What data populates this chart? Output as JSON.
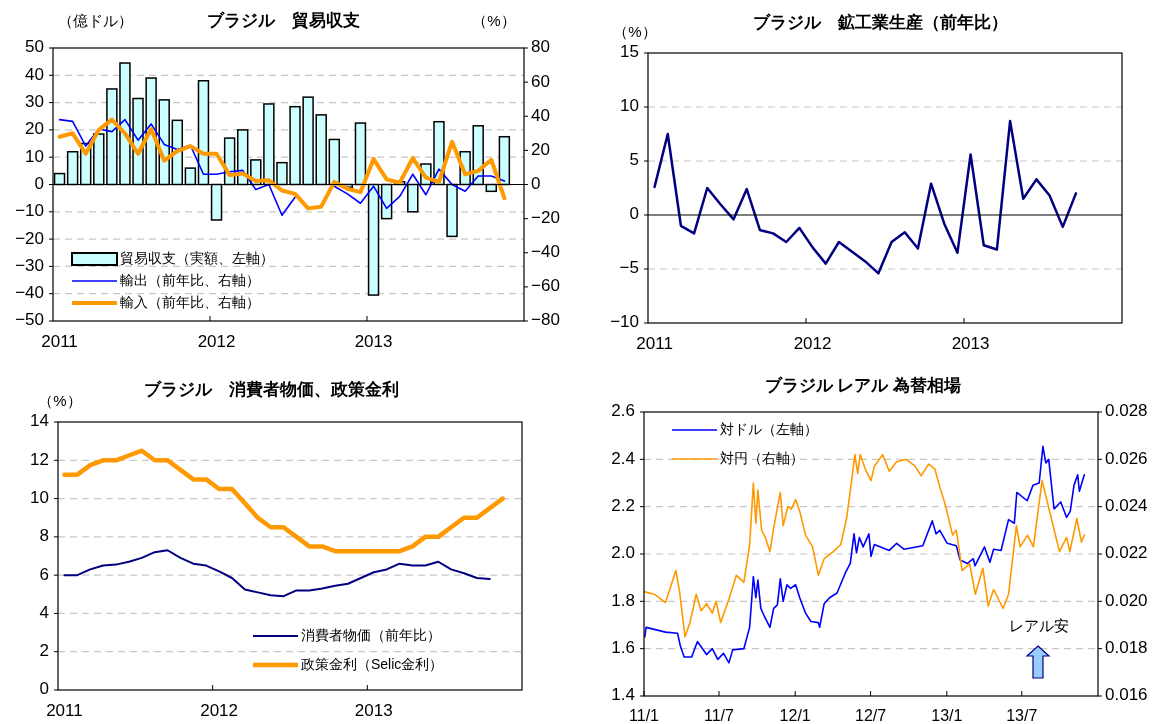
{
  "chart_data": [
    {
      "type": "bar",
      "title": "ブラジル　貿易収支",
      "ylabel": "（億ドル）",
      "y2label": "（%）",
      "categories": [
        "2011",
        null,
        null,
        null,
        null,
        null,
        null,
        null,
        null,
        null,
        null,
        null,
        "2012",
        null,
        null,
        null,
        null,
        null,
        null,
        null,
        null,
        null,
        null,
        null,
        "2013",
        null,
        null,
        null,
        null,
        null,
        null,
        null,
        null,
        null,
        null,
        null
      ],
      "series": [
        {
          "name": "貿易収支（実額、左軸）",
          "color": "#ccffff",
          "values": [
            4,
            12,
            15,
            18.5,
            35,
            44.5,
            31.5,
            39,
            31,
            23.5,
            6,
            38,
            -13,
            17,
            20,
            9,
            29.5,
            8,
            28.5,
            32,
            25.5,
            16.5,
            -1,
            22.5,
            -40.5,
            -12.5,
            1,
            -10,
            7.5,
            23,
            -19,
            12,
            21.5,
            -2.5,
            17.5,
            null
          ]
        },
        {
          "name": "輸出（前年比、右軸）",
          "type": "line",
          "axis": "y2",
          "color": "#0000ff",
          "values": [
            38,
            37,
            22.5,
            32.5,
            31,
            38,
            26,
            35.5,
            23.5,
            20.5,
            23,
            6,
            6,
            7.5,
            8.3,
            -3,
            0,
            -18,
            -7.5,
            null,
            null,
            -1,
            -5.5,
            -11,
            -1,
            -14,
            -7,
            6,
            -6,
            9,
            0,
            -4,
            5,
            5,
            2,
            null
          ]
        },
        {
          "name": "輸入（前年比、右軸）",
          "type": "line",
          "axis": "y2",
          "color": "#ff9900",
          "values": [
            28,
            30,
            18,
            32,
            38,
            30,
            18,
            32.5,
            14,
            19.5,
            22.5,
            18,
            18,
            5.5,
            6.5,
            2,
            2.5,
            -3.5,
            -5.5,
            -14,
            -13,
            1.5,
            -2.5,
            -4.5,
            15,
            3,
            1,
            15.5,
            4,
            1.5,
            25,
            6,
            8,
            14.5,
            -8,
            null
          ]
        }
      ],
      "ylim": [
        -50,
        50
      ],
      "yticks": [
        -50,
        -40,
        -30,
        -20,
        -10,
        0,
        10,
        20,
        30,
        40,
        50
      ],
      "y2lim": [
        -80,
        80
      ],
      "y2ticks": [
        -80,
        -60,
        -40,
        -20,
        0,
        20,
        40,
        60,
        80
      ],
      "grid": "y",
      "legend": "bottom left"
    },
    {
      "type": "line",
      "title": "ブラジル　鉱工業生産（前年比）",
      "ylabel": "（%）",
      "categories": [
        "2011",
        null,
        null,
        null,
        null,
        null,
        null,
        null,
        null,
        null,
        null,
        null,
        "2012",
        null,
        null,
        null,
        null,
        null,
        null,
        null,
        null,
        null,
        null,
        null,
        "2013",
        null,
        null,
        null,
        null,
        null,
        null,
        null,
        null,
        null,
        null,
        null
      ],
      "series": [
        {
          "color": "#000080",
          "values": [
            2.6,
            7.5,
            -1,
            -1.7,
            2.5,
            1,
            -0.4,
            2.4,
            -1.4,
            -1.7,
            -2.5,
            -1.2,
            -3,
            -4.5,
            -2.5,
            -3.4,
            -4.3,
            -5.4,
            -2.5,
            -1.6,
            -3.1,
            2.9,
            -0.8,
            -3.5,
            5.6,
            -2.8,
            -3.2,
            8.7,
            1.5,
            3.3,
            1.8,
            -1.1,
            2,
            null,
            null,
            null
          ]
        }
      ],
      "ylim": [
        -10,
        15
      ],
      "yticks": [
        -10,
        -5,
        0,
        5,
        10,
        15
      ],
      "grid": "y"
    },
    {
      "type": "line",
      "title": "ブラジル　消費者物価、政策金利",
      "ylabel": "（%）",
      "categories": [
        "2011",
        null,
        null,
        null,
        null,
        null,
        null,
        null,
        null,
        null,
        null,
        null,
        "2012",
        null,
        null,
        null,
        null,
        null,
        null,
        null,
        null,
        null,
        null,
        null,
        "2013",
        null,
        null,
        null,
        null,
        null,
        null,
        null,
        null,
        null,
        null,
        null
      ],
      "series": [
        {
          "name": "消費者物価（前年比）",
          "color": "#000080",
          "values": [
            6.0,
            6.0,
            6.3,
            6.5,
            6.55,
            6.7,
            6.9,
            7.2,
            7.3,
            6.9,
            6.6,
            6.5,
            6.2,
            5.85,
            5.25,
            5.1,
            4.95,
            4.9,
            5.2,
            5.2,
            5.3,
            5.45,
            5.55,
            5.85,
            6.15,
            6.3,
            6.6,
            6.5,
            6.5,
            6.7,
            6.3,
            6.1,
            5.85,
            5.8,
            null,
            null
          ]
        },
        {
          "name": "政策金利（Selic金利）",
          "color": "#ff9900",
          "values": [
            11.25,
            11.25,
            11.75,
            12,
            12,
            12.25,
            12.5,
            12,
            12,
            11.5,
            11,
            11,
            10.5,
            10.5,
            9.75,
            9,
            8.5,
            8.5,
            8,
            7.5,
            7.5,
            7.25,
            7.25,
            7.25,
            7.25,
            7.25,
            7.25,
            7.5,
            8,
            8,
            8.5,
            9,
            9,
            9.5,
            10,
            null
          ]
        }
      ],
      "ylim": [
        0,
        14
      ],
      "yticks": [
        0,
        2,
        4,
        6,
        8,
        10,
        12,
        14
      ],
      "grid": "y",
      "legend": "bottom right"
    },
    {
      "type": "line",
      "title": "ブラジル レアル 為替相場",
      "xlim": [
        "2011-01-01",
        "2014-01-01"
      ],
      "xticks": [
        {
          "value": "2011-01-01",
          "label": "11/1"
        },
        {
          "value": "2011-07-01",
          "label": "11/7"
        },
        {
          "value": "2012-01-01",
          "label": "12/1"
        },
        {
          "value": "2012-07-01",
          "label": "12/7"
        },
        {
          "value": "2013-01-01",
          "label": "13/1"
        },
        {
          "value": "2013-07-01",
          "label": "13/7"
        }
      ],
      "series": [
        {
          "name": "対ドル（左軸）",
          "color": "#0000ff",
          "x": [
            "2011-01-03",
            "2011-01-06",
            "2011-02-22",
            "2011-03-23",
            "2011-03-30",
            "2011-04-08",
            "2011-04-26",
            "2011-05-10",
            "2011-06-01",
            "2011-06-15",
            "2011-06-28",
            "2011-07-12",
            "2011-07-25",
            "2011-08-03",
            "2011-08-30",
            "2011-09-13",
            "2011-09-22",
            "2011-09-28",
            "2011-10-03",
            "2011-10-10",
            "2011-10-19",
            "2011-11-01",
            "2011-11-10",
            "2011-11-19",
            "2011-11-26",
            "2011-12-03",
            "2011-12-12",
            "2011-12-21",
            "2012-01-02",
            "2012-01-12",
            "2012-01-26",
            "2012-02-08",
            "2012-02-26",
            "2012-02-29",
            "2012-03-11",
            "2012-03-24",
            "2012-04-11",
            "2012-05-01",
            "2012-05-13",
            "2012-05-22",
            "2012-05-28",
            "2012-06-04",
            "2012-06-13",
            "2012-06-27",
            "2012-07-02",
            "2012-07-10",
            "2012-08-15",
            "2012-09-02",
            "2012-09-20",
            "2012-11-04",
            "2012-11-27",
            "2012-12-06",
            "2012-12-15",
            "2013-01-02",
            "2013-01-24",
            "2013-02-02",
            "2013-02-20",
            "2013-03-06",
            "2013-03-10",
            "2013-04-02",
            "2013-04-15",
            "2013-04-24",
            "2013-05-12",
            "2013-05-30",
            "2013-06-13",
            "2013-06-19",
            "2013-07-14",
            "2013-07-28",
            "2013-08-12",
            "2013-08-21",
            "2013-08-28",
            "2013-09-04",
            "2013-09-17",
            "2013-10-03",
            "2013-10-17",
            "2013-10-26",
            "2013-11-04",
            "2013-11-13",
            "2013-11-17",
            "2013-11-29"
          ],
          "values": [
            1.65,
            1.69,
            1.67,
            1.665,
            1.61,
            1.565,
            1.565,
            1.63,
            1.575,
            1.6,
            1.555,
            1.58,
            1.54,
            1.595,
            1.6,
            1.69,
            1.905,
            1.815,
            1.89,
            1.77,
            1.735,
            1.69,
            1.77,
            1.785,
            1.895,
            1.8,
            1.87,
            1.855,
            1.87,
            1.815,
            1.75,
            1.715,
            1.71,
            1.69,
            1.79,
            1.815,
            1.835,
            1.92,
            1.96,
            2.085,
            2.005,
            2.07,
            2.03,
            2.085,
            1.99,
            2.04,
            2.015,
            2.045,
            2.02,
            2.035,
            2.14,
            2.085,
            2.1,
            2.045,
            2.035,
            1.975,
            1.96,
            1.98,
            1.95,
            2.03,
            1.965,
            2.02,
            2.015,
            2.145,
            2.13,
            2.26,
            2.225,
            2.29,
            2.3,
            2.455,
            2.385,
            2.4,
            2.19,
            2.22,
            2.155,
            2.18,
            2.29,
            2.335,
            2.265,
            2.335
          ]
        },
        {
          "name": "対円（右軸）",
          "axis": "y2",
          "color": "#ff9900",
          "x": [
            "2011-01-03",
            "2011-01-26",
            "2011-02-22",
            "2011-03-19",
            "2011-03-28",
            "2011-04-10",
            "2011-04-22",
            "2011-05-07",
            "2011-05-19",
            "2011-06-01",
            "2011-06-15",
            "2011-06-24",
            "2011-07-05",
            "2011-07-25",
            "2011-08-12",
            "2011-08-30",
            "2011-09-13",
            "2011-09-22",
            "2011-09-28",
            "2011-10-03",
            "2011-10-12",
            "2011-10-21",
            "2011-11-01",
            "2011-11-10",
            "2011-11-26",
            "2011-12-03",
            "2011-12-14",
            "2011-12-23",
            "2012-01-02",
            "2012-01-12",
            "2012-01-26",
            "2012-02-12",
            "2012-02-26",
            "2012-03-11",
            "2012-04-02",
            "2012-04-20",
            "2012-05-04",
            "2012-05-17",
            "2012-05-24",
            "2012-05-31",
            "2012-06-06",
            "2012-06-18",
            "2012-07-02",
            "2012-07-10",
            "2012-07-30",
            "2012-08-15",
            "2012-09-02",
            "2012-09-25",
            "2012-10-17",
            "2012-10-31",
            "2012-11-18",
            "2012-12-03",
            "2012-12-14",
            "2012-12-28",
            "2013-01-15",
            "2013-01-24",
            "2013-02-07",
            "2013-02-25",
            "2013-03-11",
            "2013-03-29",
            "2013-04-11",
            "2013-04-24",
            "2013-05-17",
            "2013-05-30",
            "2013-06-18",
            "2013-06-27",
            "2013-07-15",
            "2013-07-29",
            "2013-08-19",
            "2013-09-02",
            "2013-09-16",
            "2013-09-30",
            "2013-10-17",
            "2013-10-25",
            "2013-11-11",
            "2013-11-22",
            "2013-11-29"
          ],
          "values": [
            0.0204,
            0.0203,
            0.01995,
            0.0213,
            0.0204,
            0.0185,
            0.0191,
            0.0203,
            0.0196,
            0.0199,
            0.0195,
            0.02,
            0.0191,
            0.0201,
            0.0211,
            0.0208,
            0.0224,
            0.025,
            0.0233,
            0.0247,
            0.023,
            0.0227,
            0.0221,
            0.0231,
            0.0246,
            0.0232,
            0.024,
            0.0239,
            0.0243,
            0.0238,
            0.0228,
            0.0223,
            0.0211,
            0.0218,
            0.0221,
            0.0224,
            0.0235,
            0.0252,
            0.0262,
            0.0254,
            0.0262,
            0.0256,
            0.0251,
            0.0257,
            0.0262,
            0.0255,
            0.0259,
            0.026,
            0.0257,
            0.0253,
            0.0258,
            0.0256,
            0.0249,
            0.0241,
            0.0228,
            0.023,
            0.0213,
            0.0216,
            0.0203,
            0.0214,
            0.0198,
            0.0205,
            0.0197,
            0.0203,
            0.0232,
            0.0223,
            0.0228,
            0.0223,
            0.0251,
            0.0241,
            0.0231,
            0.0221,
            0.0227,
            0.0221,
            0.0235,
            0.0225,
            0.0228
          ]
        }
      ],
      "ylim": [
        1.4,
        2.6
      ],
      "yticks": [
        {
          "value": 1.4,
          "label": "1.4"
        },
        {
          "value": 1.6,
          "label": "1.6"
        },
        {
          "value": 1.8,
          "label": "1.8"
        },
        {
          "value": 2.0,
          "label": "2.0"
        },
        {
          "value": 2.2,
          "label": "2.2"
        },
        {
          "value": 2.4,
          "label": "2.4"
        },
        {
          "value": 2.6,
          "label": "2.6"
        }
      ],
      "y2lim": [
        0.016,
        0.028
      ],
      "y2ticks": [
        {
          "value": 0.016,
          "label": "0.016"
        },
        {
          "value": 0.018,
          "label": "0.018"
        },
        {
          "value": 0.02,
          "label": "0.020"
        },
        {
          "value": 0.022,
          "label": "0.022"
        },
        {
          "value": 0.024,
          "label": "0.024"
        },
        {
          "value": 0.026,
          "label": "0.026"
        },
        {
          "value": 0.028,
          "label": "0.028"
        }
      ],
      "grid": "y",
      "legend": "top left",
      "annotations": [
        "レアル安"
      ]
    }
  ]
}
